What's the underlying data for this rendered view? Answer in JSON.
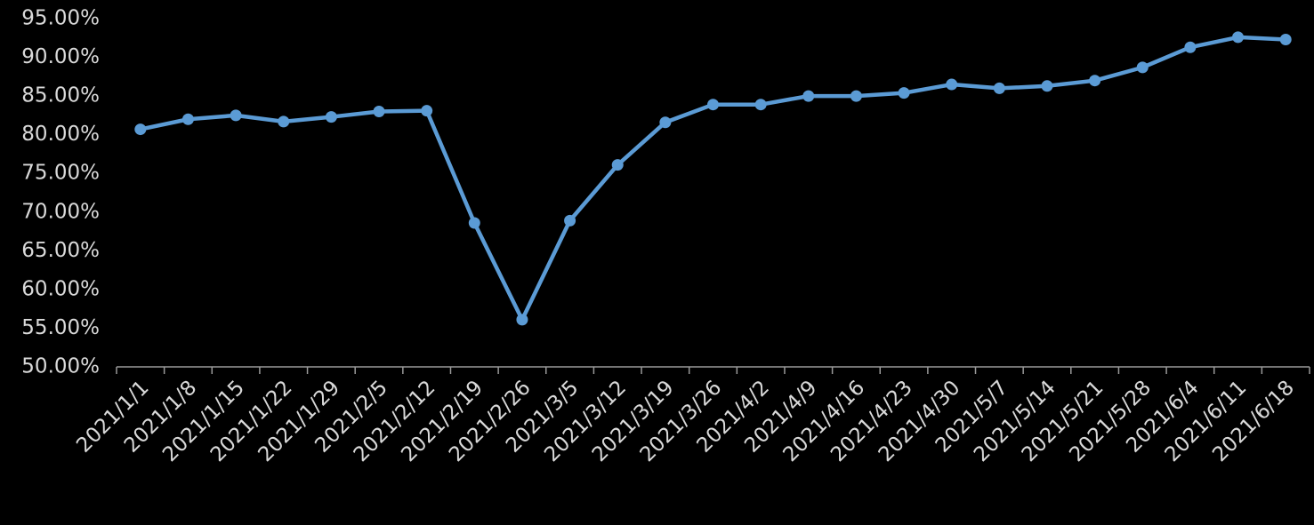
{
  "chart_data": {
    "type": "line",
    "categories": [
      "2021/1/1",
      "2021/1/8",
      "2021/1/15",
      "2021/1/22",
      "2021/1/29",
      "2021/2/5",
      "2021/2/12",
      "2021/2/19",
      "2021/2/26",
      "2021/3/5",
      "2021/3/12",
      "2021/3/19",
      "2021/3/26",
      "2021/4/2",
      "2021/4/9",
      "2021/4/16",
      "2021/4/23",
      "2021/4/30",
      "2021/5/7",
      "2021/5/14",
      "2021/5/21",
      "2021/5/28",
      "2021/6/4",
      "2021/6/11",
      "2021/6/18"
    ],
    "values": [
      80.7,
      82.0,
      82.5,
      81.7,
      82.3,
      83.0,
      83.1,
      68.6,
      56.1,
      68.9,
      76.1,
      81.6,
      83.9,
      83.9,
      85.0,
      85.0,
      85.4,
      86.5,
      86.0,
      86.3,
      87.0,
      88.7,
      91.3,
      92.6,
      92.3
    ],
    "color": "#5b9bd5",
    "ylim": [
      50,
      95
    ],
    "yticks": [
      {
        "value": 50,
        "label": "50.00%"
      },
      {
        "value": 55,
        "label": "55.00%"
      },
      {
        "value": 60,
        "label": "60.00%"
      },
      {
        "value": 65,
        "label": "65.00%"
      },
      {
        "value": 70,
        "label": "70.00%"
      },
      {
        "value": 75,
        "label": "75.00%"
      },
      {
        "value": 80,
        "label": "80.00%"
      },
      {
        "value": 85,
        "label": "85.00%"
      },
      {
        "value": 90,
        "label": "90.00%"
      },
      {
        "value": 95,
        "label": "95.00%"
      }
    ],
    "grid": false
  }
}
